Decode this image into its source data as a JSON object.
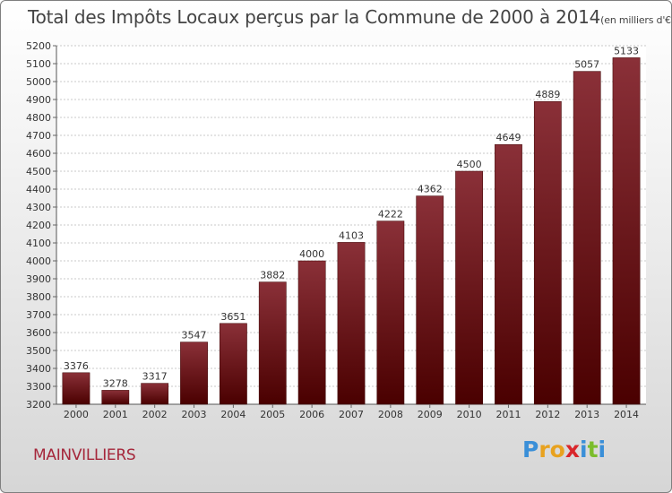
{
  "chart_data": {
    "type": "bar",
    "title": "Total des Impôts Locaux perçus par la Commune de 2000 à 2014",
    "unit_note": "(en milliers d'€)",
    "categories": [
      "2000",
      "2001",
      "2002",
      "2003",
      "2004",
      "2005",
      "2006",
      "2007",
      "2008",
      "2009",
      "2010",
      "2011",
      "2012",
      "2013",
      "2014"
    ],
    "values": [
      3376,
      3278,
      3317,
      3547,
      3651,
      3882,
      4000,
      4103,
      4222,
      4362,
      4500,
      4649,
      4889,
      5057,
      5133
    ],
    "ylim": [
      3200,
      5200
    ],
    "ytick_step": 100,
    "xlabel": "",
    "ylabel": "",
    "grid": true,
    "bar_color_top": "#8a3038",
    "bar_color_bottom": "#4a0000"
  },
  "commune": "MAINVILLIERS",
  "logo": {
    "letters": [
      "P",
      "r",
      "o",
      "x",
      "i",
      "t",
      "i"
    ],
    "colors": [
      "#3a8fd8",
      "#e8a21f",
      "#e8a21f",
      "#d9262b",
      "#3a8fd8",
      "#7bbd2c",
      "#3a8fd8"
    ]
  }
}
